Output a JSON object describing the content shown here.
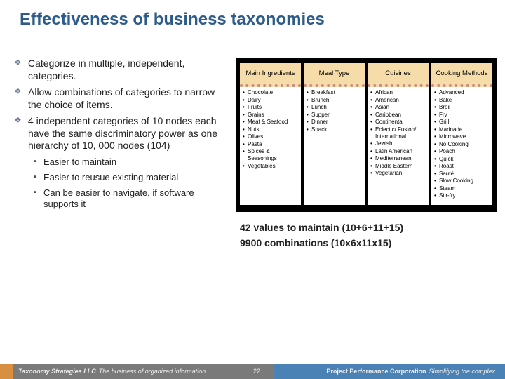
{
  "title": "Effectiveness of business taxonomies",
  "bullets": [
    "Categorize in multiple, independent, categories.",
    "Allow combinations of categories to narrow the choice of items.",
    "4 independent categories of 10 nodes each have the same discriminatory power as one hierarchy of 10, 000 nodes (104)"
  ],
  "sub_bullets": [
    "Easier to maintain",
    "Easier to reusue existing material",
    "Can be easier to navigate, if software supports it"
  ],
  "categories": [
    {
      "header": "Main Ingredients",
      "items": [
        "Chocolate",
        "Dairy",
        "Fruits",
        "Grains",
        "Meat & Seafood",
        "Nuts",
        "Olives",
        "Pasta",
        "Spices & Seasonings",
        "Vegetables"
      ]
    },
    {
      "header": "Meal Type",
      "items": [
        "Breakfast",
        "Brunch",
        "Lunch",
        "Supper",
        "Dinner",
        "Snack"
      ]
    },
    {
      "header": "Cuisines",
      "items": [
        "African",
        "American",
        "Asian",
        "Caribbean",
        "Continental",
        "Eclectic/ Fusion/ International",
        "Jewish",
        "Latin American",
        "Mediterranean",
        "Middle Eastern",
        "Vegetarian"
      ]
    },
    {
      "header": "Cooking Methods",
      "items": [
        "Advanced",
        "Bake",
        "Broil",
        "Fry",
        "Grill",
        "Marinade",
        "Microwave",
        "No Cooking",
        "Poach",
        "Quick",
        "Roast",
        "Sauté",
        "Slow Cooking",
        "Steam",
        "Stir-fry"
      ]
    }
  ],
  "summary": [
    "42 values to maintain (10+6+11+15)",
    "9900 combinations (10x6x11x15)"
  ],
  "footer": {
    "left_bold": "Taxonomy Strategies LLC",
    "left_ital": "The business of organized information",
    "page": "22",
    "right_bold": "Project Performance Corporation",
    "right_ital": "Simplifying the complex"
  },
  "colors": {
    "title": "#2d5b8a",
    "cat_header_bg": "#f5dca8",
    "cat_container_bg": "#000000",
    "footer_left_bg": "#7a7a7a",
    "footer_right_bg": "#4a82b5",
    "footer_accent": "#d89040"
  }
}
